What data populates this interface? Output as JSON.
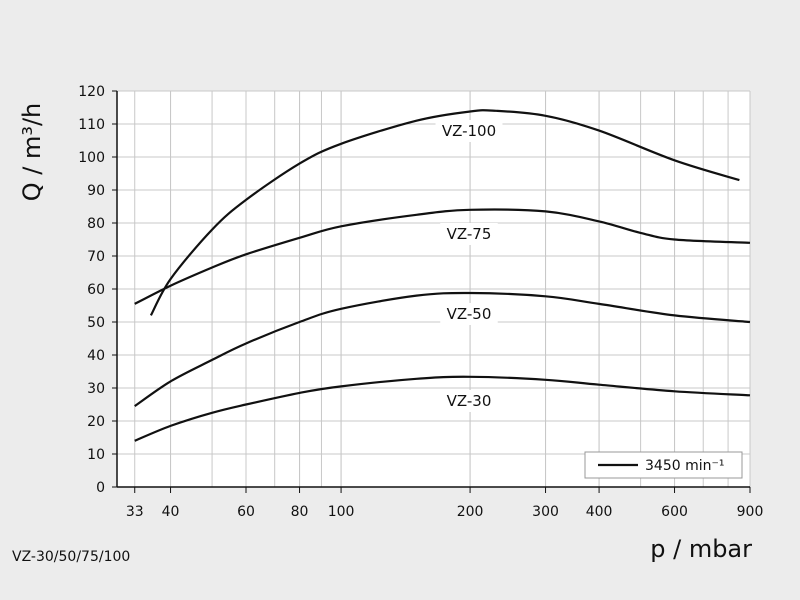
{
  "chart_data": {
    "type": "line",
    "xlabel": "p / mbar",
    "ylabel": "Q / m³/h",
    "x_scale": "log",
    "xlim": [
      30,
      900
    ],
    "ylim": [
      0,
      120
    ],
    "grid": true,
    "x_ticks": [
      33,
      40,
      60,
      80,
      100,
      200,
      300,
      400,
      600,
      900
    ],
    "y_ticks": [
      0,
      10,
      20,
      30,
      40,
      50,
      60,
      70,
      80,
      90,
      100,
      110,
      120
    ],
    "legend": {
      "label": "3450 min⁻¹",
      "placement": "bottom-right"
    },
    "series": [
      {
        "name": "VZ-100",
        "x": [
          36,
          40,
          50,
          60,
          80,
          100,
          150,
          200,
          230,
          300,
          400,
          600,
          850
        ],
        "y": [
          52,
          63,
          78,
          87,
          98,
          104,
          111,
          113.8,
          114,
          112.5,
          108,
          99,
          93
        ]
      },
      {
        "name": "VZ-75",
        "x": [
          33,
          40,
          50,
          60,
          80,
          100,
          150,
          200,
          300,
          400,
          500,
          600,
          900
        ],
        "y": [
          55.5,
          61,
          66.5,
          70.5,
          75.5,
          79,
          82.5,
          84,
          83.5,
          80.5,
          77,
          75,
          74
        ]
      },
      {
        "name": "VZ-50",
        "x": [
          33,
          40,
          50,
          60,
          80,
          100,
          150,
          200,
          300,
          400,
          600,
          900
        ],
        "y": [
          24.5,
          32,
          38.5,
          43.5,
          50,
          54,
          58,
          58.8,
          57.8,
          55.5,
          52,
          50
        ]
      },
      {
        "name": "VZ-30",
        "x": [
          33,
          40,
          50,
          60,
          80,
          100,
          150,
          200,
          300,
          400,
          600,
          900
        ],
        "y": [
          14,
          18.5,
          22.5,
          25,
          28.5,
          30.5,
          32.8,
          33.4,
          32.5,
          31,
          29,
          27.8
        ]
      }
    ]
  },
  "caption": "VZ-30/50/75/100"
}
